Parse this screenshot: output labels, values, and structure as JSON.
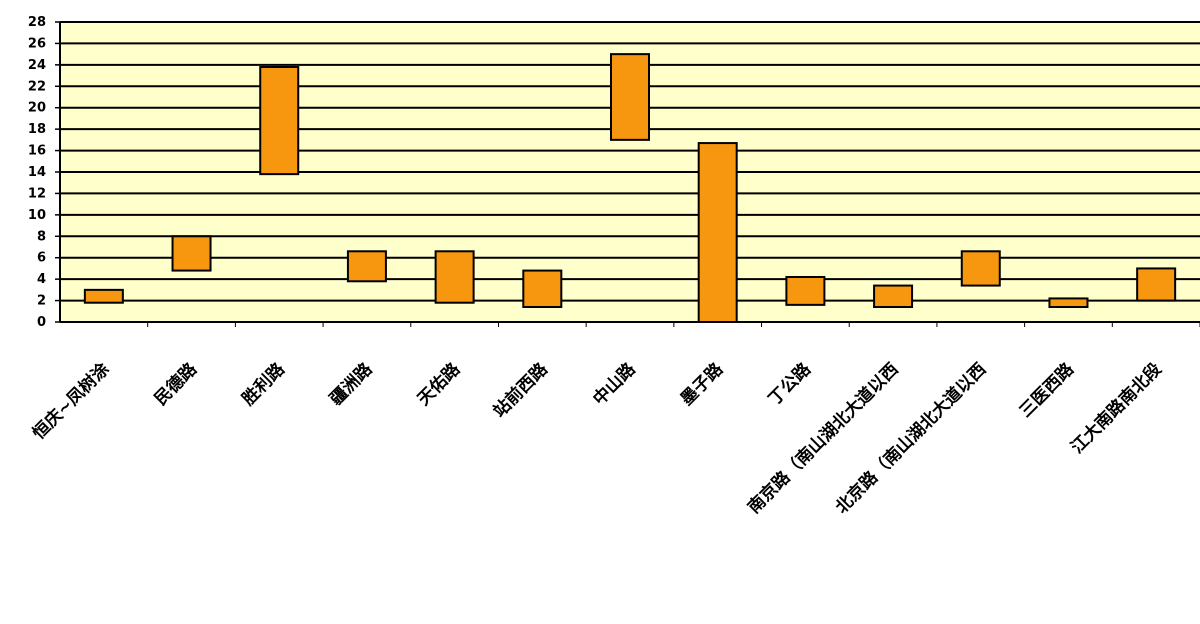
{
  "chart_data": {
    "type": "bar",
    "subtype": "floating-range",
    "title": "",
    "xlabel": "",
    "ylabel": "",
    "ylim": [
      0,
      28
    ],
    "yticks": [
      0,
      2,
      4,
      6,
      8,
      10,
      12,
      14,
      16,
      18,
      20,
      22,
      24,
      26,
      28
    ],
    "grid": true,
    "legend": "none",
    "categories": [
      "恒庆~凤树涂",
      "民德路",
      "胜利路",
      "疆洲路",
      "天佑路",
      "站前西路",
      "中山路",
      "墨子路",
      "丁公路",
      "南京路（南山湖北大道以西",
      "北京路（南山湖北大道以西",
      "三医西路",
      "江大南路南北段"
    ],
    "ranges": [
      [
        1.8,
        3.0
      ],
      [
        4.8,
        8.0
      ],
      [
        13.8,
        23.8
      ],
      [
        3.8,
        6.6
      ],
      [
        1.8,
        6.6
      ],
      [
        1.4,
        4.8
      ],
      [
        17.0,
        25.0
      ],
      [
        0.0,
        16.7
      ],
      [
        1.6,
        4.2
      ],
      [
        1.4,
        3.4
      ],
      [
        3.4,
        6.6
      ],
      [
        1.4,
        2.2
      ],
      [
        2.0,
        5.0
      ]
    ],
    "colors": {
      "bar_fill": "#f7960f",
      "bar_stroke": "#000000",
      "plot_bg": "#ffffcc",
      "grid": "#000000"
    }
  }
}
